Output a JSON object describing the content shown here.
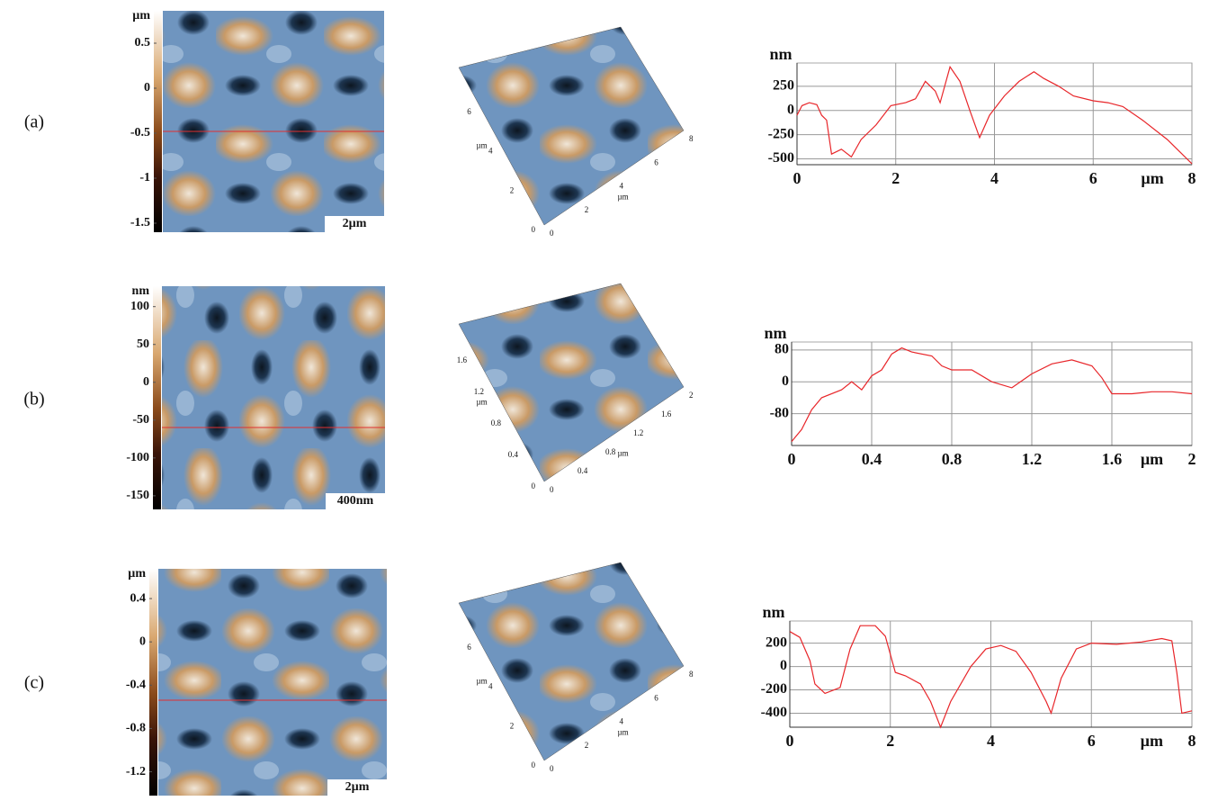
{
  "panels": [
    {
      "label": "(a)",
      "colorbar": {
        "unit": "µm",
        "lim": [
          -1.6,
          0.86
        ],
        "ticks": [
          0.5,
          0,
          -0.5,
          -1,
          -1.5
        ]
      },
      "scale_bar": "2µm",
      "surface": {
        "unit": "µm",
        "xticks": [
          0,
          2,
          4,
          6,
          8
        ],
        "yticks": [
          0,
          2,
          4,
          6
        ]
      }
    },
    {
      "label": "(b)",
      "colorbar": {
        "unit": "nm",
        "lim": [
          -168,
          127
        ],
        "ticks": [
          100,
          50,
          0,
          -50,
          -100,
          -150
        ]
      },
      "scale_bar": "400nm",
      "surface": {
        "unit": "µm",
        "xticks": [
          0,
          0.4,
          0.8,
          1.2,
          1.6,
          2
        ],
        "yticks": [
          0,
          0.4,
          0.8,
          1.2,
          1.6
        ]
      }
    },
    {
      "label": "(c)",
      "colorbar": {
        "unit": "µm",
        "lim": [
          -1.42,
          0.675
        ],
        "ticks": [
          0.4,
          0,
          -0.4,
          -0.8,
          -1.2
        ]
      },
      "scale_bar": "2µm",
      "surface": {
        "unit": "µm",
        "xticks": [
          0,
          2,
          4,
          6,
          8
        ],
        "yticks": [
          0,
          2,
          4,
          6
        ]
      }
    }
  ],
  "chart_data": [
    {
      "type": "line",
      "xlabel": "µm",
      "ylabel": "nm",
      "xlim": [
        0,
        8
      ],
      "ylim": [
        -560,
        490
      ],
      "xticks": [
        0,
        2,
        4,
        6,
        8
      ],
      "yticks": [
        250,
        0,
        -250,
        -500
      ],
      "grid": true,
      "x": [
        0,
        0.1,
        0.25,
        0.4,
        0.5,
        0.6,
        0.7,
        0.9,
        1.1,
        1.3,
        1.6,
        1.9,
        2.2,
        2.4,
        2.6,
        2.8,
        2.9,
        3.1,
        3.3,
        3.5,
        3.7,
        3.9,
        4.2,
        4.5,
        4.8,
        5.0,
        5.3,
        5.6,
        6,
        6.3,
        6.6,
        7,
        7.5,
        8
      ],
      "series": [
        {
          "color": "#e8262a",
          "values": [
            -50,
            50,
            80,
            60,
            -50,
            -100,
            -450,
            -400,
            -480,
            -300,
            -150,
            50,
            80,
            120,
            300,
            200,
            80,
            450,
            300,
            0,
            -280,
            -50,
            150,
            300,
            400,
            330,
            250,
            150,
            100,
            80,
            40,
            -100,
            -300,
            -550
          ]
        }
      ]
    },
    {
      "type": "line",
      "xlabel": "µm",
      "ylabel": "nm",
      "xlim": [
        0,
        2
      ],
      "ylim": [
        -160,
        100
      ],
      "xticks": [
        0,
        0.4,
        0.8,
        1.2,
        1.6,
        2
      ],
      "yticks": [
        80,
        0,
        -80
      ],
      "grid": true,
      "x": [
        0,
        0.05,
        0.1,
        0.15,
        0.25,
        0.3,
        0.35,
        0.4,
        0.45,
        0.5,
        0.55,
        0.6,
        0.7,
        0.75,
        0.8,
        0.9,
        1.0,
        1.1,
        1.2,
        1.3,
        1.4,
        1.5,
        1.55,
        1.6,
        1.7,
        1.8,
        1.9,
        2
      ],
      "series": [
        {
          "color": "#e8262a",
          "values": [
            -150,
            -120,
            -70,
            -40,
            -20,
            0,
            -20,
            15,
            30,
            70,
            85,
            75,
            65,
            40,
            30,
            30,
            0,
            -15,
            20,
            45,
            55,
            40,
            10,
            -30,
            -30,
            -25,
            -25,
            -30
          ]
        }
      ]
    },
    {
      "type": "line",
      "xlabel": "µm",
      "ylabel": "nm",
      "xlim": [
        0,
        8
      ],
      "ylim": [
        -520,
        390
      ],
      "xticks": [
        0,
        2,
        4,
        6,
        8
      ],
      "yticks": [
        200,
        0,
        -200,
        -400
      ],
      "grid": true,
      "x": [
        0,
        0.2,
        0.4,
        0.5,
        0.7,
        1,
        1.2,
        1.4,
        1.7,
        1.9,
        2.1,
        2.3,
        2.6,
        2.8,
        3,
        3.2,
        3.6,
        3.9,
        4.2,
        4.5,
        4.8,
        5.1,
        5.2,
        5.4,
        5.7,
        6,
        6.5,
        7,
        7.4,
        7.6,
        7.7,
        7.8,
        8
      ],
      "series": [
        {
          "color": "#e8262a",
          "values": [
            300,
            250,
            50,
            -150,
            -230,
            -180,
            150,
            350,
            350,
            260,
            -50,
            -80,
            -150,
            -300,
            -520,
            -300,
            0,
            150,
            180,
            130,
            -50,
            -300,
            -400,
            -100,
            150,
            200,
            190,
            210,
            240,
            220,
            -50,
            -400,
            -380
          ]
        }
      ]
    }
  ]
}
